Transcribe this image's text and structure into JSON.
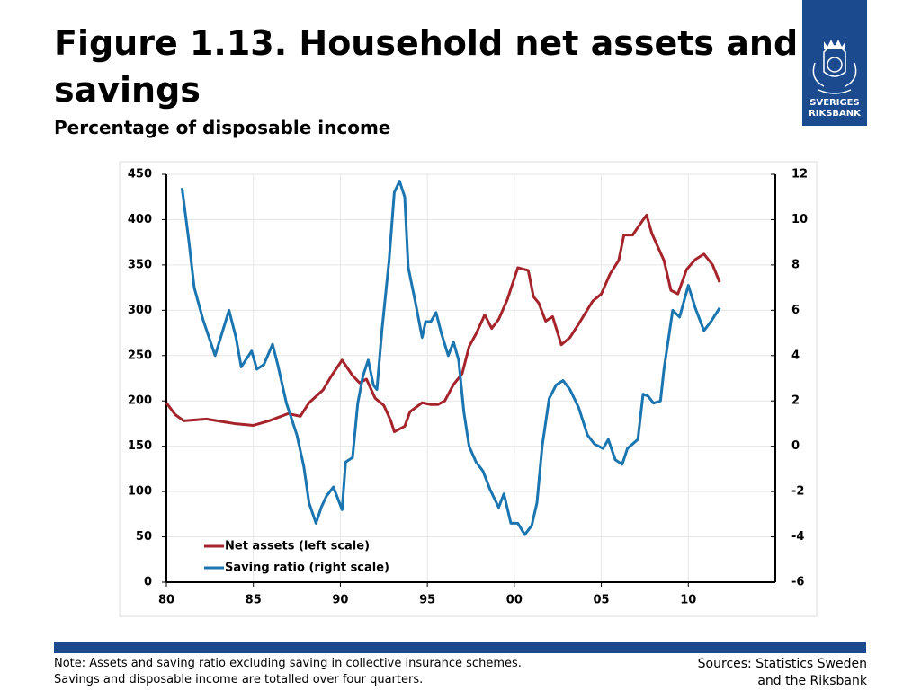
{
  "chart_data": {
    "type": "line",
    "title": "Figure 1.13. Household net assets and savings",
    "subtitle": "Percentage of disposable income",
    "xlim": [
      1980,
      2015
    ],
    "xticks": [
      {
        "value": 1980,
        "label": "80"
      },
      {
        "value": 1985,
        "label": "85"
      },
      {
        "value": 1990,
        "label": "90"
      },
      {
        "value": 1995,
        "label": "95"
      },
      {
        "value": 2000,
        "label": "00"
      },
      {
        "value": 2005,
        "label": "05"
      },
      {
        "value": 2010,
        "label": "10"
      }
    ],
    "ylim": [
      0,
      450
    ],
    "yticks": [
      0,
      50,
      100,
      150,
      200,
      250,
      300,
      350,
      400,
      450
    ],
    "y2lim": [
      -6,
      12
    ],
    "y2ticks": [
      -6,
      -4,
      -2,
      0,
      2,
      4,
      6,
      8,
      10,
      12
    ],
    "grid": true,
    "legend": "lower left",
    "series": [
      {
        "name": "Net assets (left scale)",
        "color": "#a5232a",
        "x": [
          1980.0,
          1980.5,
          1981.0,
          1982.3,
          1983.9,
          1985.0,
          1985.9,
          1987.0,
          1987.7,
          1988.2,
          1989.0,
          1989.5,
          1990.1,
          1990.7,
          1991.1,
          1991.5,
          1992.0,
          1992.5,
          1992.9,
          1993.1,
          1993.7,
          1994.0,
          1994.7,
          1995.2,
          1995.6,
          1996.0,
          1996.5,
          1997.0,
          1997.4,
          1997.8,
          1998.3,
          1998.7,
          1999.1,
          1999.6,
          2000.2,
          2000.8,
          2001.1,
          2001.4,
          2001.8,
          2002.2,
          2002.7,
          2003.2,
          2003.7,
          2004.5,
          2005.0,
          2005.5,
          2006.0,
          2006.3,
          2006.8,
          2007.3,
          2007.6,
          2007.9,
          2008.6,
          2009.0,
          2009.4,
          2009.9,
          2010.4,
          2010.9,
          2011.4,
          2011.8
        ],
        "values": [
          198,
          185,
          178,
          180,
          175,
          173,
          178,
          186,
          183,
          198,
          212,
          228,
          245,
          228,
          220,
          224,
          203,
          195,
          178,
          166,
          172,
          188,
          198,
          196,
          196,
          200,
          218,
          230,
          260,
          274,
          295,
          280,
          290,
          312,
          347,
          344,
          315,
          308,
          288,
          293,
          262,
          270,
          285,
          310,
          318,
          340,
          355,
          383,
          383,
          397,
          405,
          385,
          355,
          322,
          318,
          345,
          356,
          362,
          350,
          331
        ]
      },
      {
        "name": "Saving ratio (right scale)",
        "color": "#1a75b0",
        "axis": "y2",
        "x": [
          1980.9,
          1981.3,
          1981.6,
          1982.1,
          1982.8,
          1983.2,
          1983.6,
          1984.0,
          1984.3,
          1984.9,
          1985.2,
          1985.6,
          1986.1,
          1986.4,
          1986.9,
          1987.5,
          1987.9,
          1988.2,
          1988.6,
          1988.9,
          1989.2,
          1989.6,
          1990.1,
          1990.3,
          1990.7,
          1991.0,
          1991.3,
          1991.6,
          1991.9,
          1992.1,
          1992.4,
          1992.8,
          1993.1,
          1993.4,
          1993.7,
          1993.9,
          1994.3,
          1994.7,
          1994.9,
          1995.2,
          1995.5,
          1995.8,
          1996.2,
          1996.5,
          1996.8,
          1997.1,
          1997.4,
          1997.8,
          1998.2,
          1998.6,
          1999.1,
          1999.4,
          1999.8,
          2000.2,
          2000.6,
          2001.0,
          2001.3,
          2001.6,
          2002.0,
          2002.4,
          2002.8,
          2003.2,
          2003.7,
          2004.2,
          2004.6,
          2005.1,
          2005.4,
          2005.8,
          2006.2,
          2006.5,
          2007.1,
          2007.4,
          2007.7,
          2008.0,
          2008.4,
          2008.6,
          2009.1,
          2009.5,
          2010.0,
          2010.4,
          2010.9,
          2011.3,
          2011.8
        ],
        "values": [
          11.4,
          9.0,
          7.0,
          5.6,
          4.0,
          5.0,
          6.0,
          4.8,
          3.5,
          4.2,
          3.4,
          3.6,
          4.5,
          3.6,
          1.9,
          0.5,
          -0.9,
          -2.5,
          -3.4,
          -2.7,
          -2.2,
          -1.8,
          -2.8,
          -0.7,
          -0.5,
          1.9,
          3.1,
          3.8,
          2.7,
          2.5,
          5.2,
          8.2,
          11.2,
          11.7,
          11.0,
          7.9,
          6.4,
          4.8,
          5.5,
          5.5,
          5.9,
          5.0,
          4.0,
          4.6,
          3.8,
          1.5,
          0.0,
          -0.7,
          -1.1,
          -1.9,
          -2.7,
          -2.1,
          -3.4,
          -3.4,
          -3.9,
          -3.5,
          -2.5,
          0.0,
          2.1,
          2.7,
          2.9,
          2.5,
          1.7,
          0.5,
          0.1,
          -0.1,
          0.3,
          -0.6,
          -0.8,
          -0.1,
          0.3,
          2.3,
          2.2,
          1.9,
          2.0,
          3.4,
          6.0,
          5.7,
          7.1,
          6.1,
          5.1,
          5.5,
          6.1
        ]
      }
    ]
  },
  "logo": [
    "SVERIGES",
    "RIKSBANK"
  ],
  "note": [
    "Note: Assets and saving ratio excluding saving in collective insurance schemes.",
    "Savings and disposable income are totalled over four quarters."
  ],
  "sources": [
    "Sources: Statistics Sweden",
    "and the Riksbank"
  ]
}
